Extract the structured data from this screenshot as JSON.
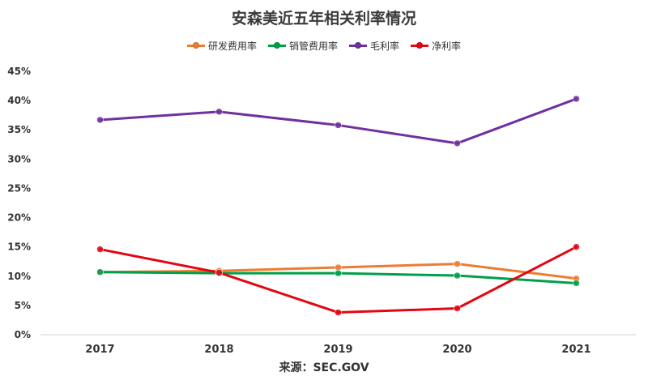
{
  "chart_data": {
    "type": "line",
    "title": "安森美近五年相关利率情况",
    "categories": [
      "2017",
      "2018",
      "2019",
      "2020",
      "2021"
    ],
    "ylim": [
      0,
      45
    ],
    "yticks": [
      "0%",
      "5%",
      "10%",
      "15%",
      "20%",
      "25%",
      "30%",
      "35%",
      "40%",
      "45%"
    ],
    "grid": false,
    "legend_position": "top-center",
    "series": [
      {
        "name": "研发费用率",
        "color": "#ED7D31",
        "values": [
          10.7,
          10.9,
          11.5,
          12.1,
          9.6
        ]
      },
      {
        "name": "销管费用率",
        "color": "#00A04A",
        "values": [
          10.7,
          10.5,
          10.5,
          10.1,
          8.8
        ]
      },
      {
        "name": "毛利率",
        "color": "#7030A0",
        "values": [
          36.7,
          38.1,
          35.8,
          32.7,
          40.3
        ]
      },
      {
        "name": "净利率",
        "color": "#E30613",
        "values": [
          14.6,
          10.6,
          3.8,
          4.5,
          15.0
        ]
      }
    ],
    "source": "来源：SEC.GOV"
  }
}
